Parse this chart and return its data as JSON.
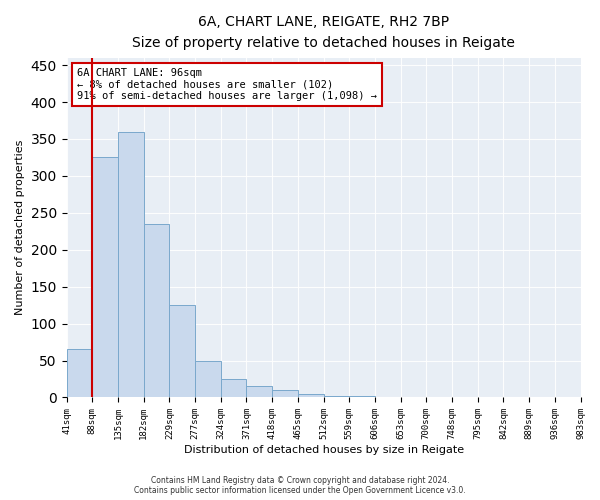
{
  "title_line1": "6A, CHART LANE, REIGATE, RH2 7BP",
  "title_line2": "Size of property relative to detached houses in Reigate",
  "xlabel": "Distribution of detached houses by size in Reigate",
  "ylabel": "Number of detached properties",
  "bar_values": [
    65,
    325,
    360,
    235,
    125,
    50,
    25,
    15,
    10,
    5,
    2,
    2,
    1,
    0,
    0,
    1,
    0,
    1,
    0,
    1
  ],
  "bar_labels": [
    "41sqm",
    "88sqm",
    "135sqm",
    "182sqm",
    "229sqm",
    "277sqm",
    "324sqm",
    "371sqm",
    "418sqm",
    "465sqm",
    "512sqm",
    "559sqm",
    "606sqm",
    "653sqm",
    "700sqm",
    "748sqm",
    "795sqm",
    "842sqm",
    "889sqm",
    "936sqm",
    "983sqm"
  ],
  "bar_color": "#c9d9ed",
  "bar_edge_color": "#7aa8cc",
  "highlight_line_color": "#cc0000",
  "annotation_box_color": "#cc0000",
  "annotation_text_line1": "6A CHART LANE: 96sqm",
  "annotation_text_line2": "← 8% of detached houses are smaller (102)",
  "annotation_text_line3": "91% of semi-detached houses are larger (1,098) →",
  "ylim": [
    0,
    460
  ],
  "yticks": [
    0,
    50,
    100,
    150,
    200,
    250,
    300,
    350,
    400,
    450
  ],
  "background_color": "#e8eef5",
  "footer_line1": "Contains HM Land Registry data © Crown copyright and database right 2024.",
  "footer_line2": "Contains public sector information licensed under the Open Government Licence v3.0."
}
